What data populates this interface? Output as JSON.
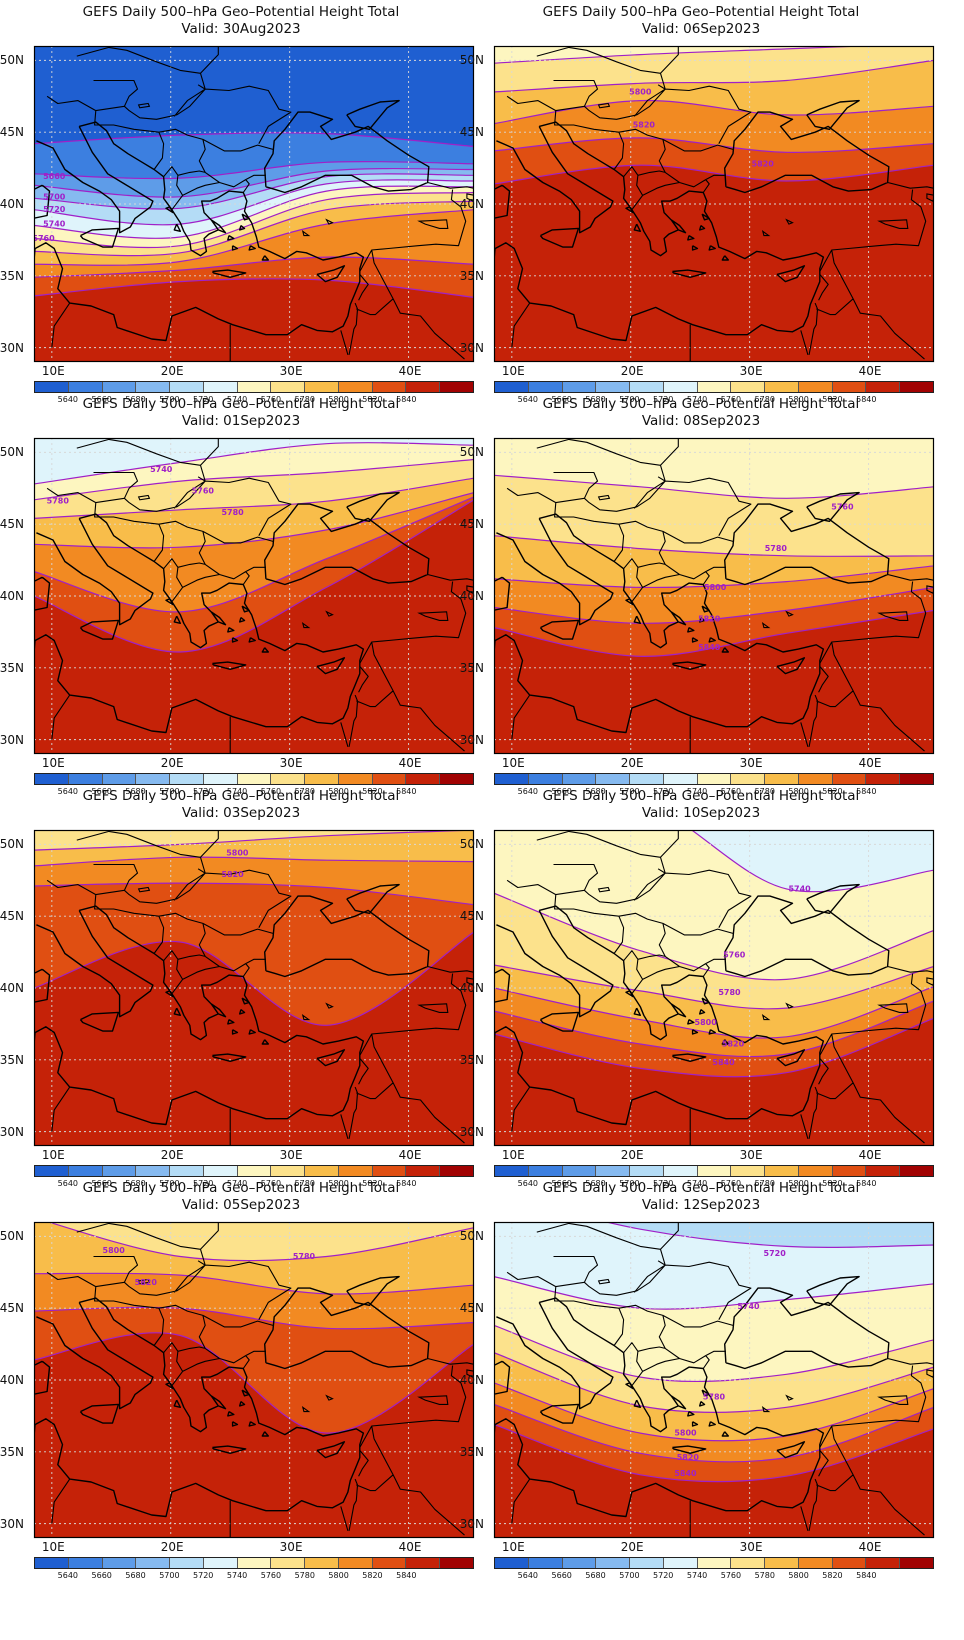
{
  "colors": {
    "fills": [
      "#1f5fd1",
      "#3c7fe0",
      "#5e9ce8",
      "#86baf0",
      "#b4dcf6",
      "#dff4fb",
      "#fdf6c0",
      "#fce28c",
      "#f8bd4a",
      "#f28a22",
      "#e04f12",
      "#c52208",
      "#a10202"
    ],
    "contour": "#a020c8",
    "coast": "#000000",
    "grid": "#d8d8d8"
  },
  "colorbar_labels": [
    "5640",
    "5660",
    "5680",
    "5700",
    "5720",
    "5740",
    "5760",
    "5780",
    "5800",
    "5820",
    "5840"
  ],
  "axes": {
    "x_labels": [
      "10E",
      "20E",
      "30E",
      "40E"
    ],
    "y_labels": [
      "50N",
      "45N",
      "40N",
      "35N",
      "30N"
    ]
  },
  "panels": [
    {
      "title": "GEFS Daily 500–hPa Geo–Potential Height Total",
      "valid": "Valid: 30Aug2023",
      "chart_data": {
        "type": "heatmap",
        "bands": [
          {
            "level": "5640",
            "y": [
              44.2,
              44.8,
              44.9,
              44.0
            ]
          },
          {
            "level": "5660",
            "y": [
              42.1,
              41.8,
              42.9,
              42.8
            ]
          },
          {
            "level": "5680",
            "y": [
              41.3,
              40.5,
              42.3,
              42.4
            ]
          },
          {
            "level": "5700",
            "y": [
              40.4,
              39.7,
              41.9,
              42.0
            ]
          },
          {
            "level": "5720",
            "y": [
              39.6,
              38.6,
              41.4,
              41.6
            ]
          },
          {
            "level": "5740",
            "y": [
              38.5,
              37.7,
              40.9,
              41.2
            ]
          },
          {
            "level": "5760",
            "y": [
              37.6,
              37.1,
              40.3,
              40.8
            ]
          },
          {
            "level": "5780",
            "y": [
              36.7,
              36.6,
              39.6,
              40.2
            ]
          },
          {
            "level": "5800",
            "y": [
              35.8,
              36.0,
              38.6,
              39.6
            ]
          },
          {
            "level": "5820",
            "y": [
              34.9,
              35.4,
              36.3,
              35.8
            ]
          },
          {
            "level": "5840",
            "y": [
              33.6,
              34.6,
              34.7,
              33.5
            ]
          }
        ],
        "contour_labels": [
          {
            "text": "5660",
            "lon": 10.2,
            "lat": 41.9
          },
          {
            "text": "5700",
            "lon": 10.2,
            "lat": 40.5
          },
          {
            "text": "5720",
            "lon": 10.2,
            "lat": 39.6
          },
          {
            "text": "5740",
            "lon": 10.2,
            "lat": 38.6
          },
          {
            "text": "5760",
            "lon": 9.3,
            "lat": 37.6
          }
        ]
      }
    },
    {
      "title": "GEFS Daily 500–hPa Geo–Potential Height Total",
      "valid": "Valid: 06Sep2023",
      "chart_data": {
        "type": "heatmap",
        "bands": [
          {
            "level": "5760",
            "y": [
              49.8,
              50.4,
              50.8,
              51.2
            ]
          },
          {
            "level": "5780",
            "y": [
              47.8,
              48.4,
              48.6,
              50.0
            ]
          },
          {
            "level": "5800",
            "y": [
              45.6,
              47.2,
              46.2,
              46.8
            ]
          },
          {
            "level": "5820",
            "y": [
              43.7,
              44.6,
              43.6,
              44.2
            ]
          },
          {
            "level": "5840",
            "y": [
              41.4,
              42.7,
              41.6,
              42.7
            ]
          }
        ],
        "contour_labels": [
          {
            "text": "5800",
            "lon": 20.8,
            "lat": 47.8
          },
          {
            "text": "5820",
            "lon": 21.1,
            "lat": 45.5
          },
          {
            "text": "5820",
            "lon": 31.1,
            "lat": 42.8
          }
        ]
      }
    },
    {
      "title": "GEFS Daily 500–hPa Geo–Potential Height Total",
      "valid": "Valid: 01Sep2023",
      "chart_data": {
        "type": "heatmap",
        "bands": [
          {
            "level": "5740",
            "y": [
              47.8,
              49.3,
              50.6,
              50.5
            ]
          },
          {
            "level": "5760",
            "y": [
              46.7,
              48.0,
              48.6,
              49.5
            ]
          },
          {
            "level": "5780",
            "y": [
              45.4,
              46.0,
              46.6,
              48.2
            ]
          },
          {
            "level": "5800",
            "y": [
              43.6,
              43.4,
              44.6,
              47.2
            ]
          },
          {
            "level": "5820",
            "y": [
              41.7,
              38.9,
              42.6,
              46.9
            ]
          },
          {
            "level": "5840",
            "y": [
              40.0,
              36.1,
              40.6,
              46.7
            ]
          }
        ],
        "contour_labels": [
          {
            "text": "5740",
            "lon": 19.2,
            "lat": 48.8
          },
          {
            "text": "5760",
            "lon": 22.7,
            "lat": 47.3
          },
          {
            "text": "5780",
            "lon": 10.5,
            "lat": 46.6
          },
          {
            "text": "5780",
            "lon": 25.2,
            "lat": 45.8
          }
        ]
      }
    },
    {
      "title": "GEFS Daily 500–hPa Geo–Potential Height Total",
      "valid": "Valid: 08Sep2023",
      "chart_data": {
        "type": "heatmap",
        "bands": [
          {
            "level": "5760",
            "y": [
              48.4,
              47.6,
              46.8,
              47.6
            ]
          },
          {
            "level": "5780",
            "y": [
              44.2,
              43.3,
              42.8,
              42.8
            ]
          },
          {
            "level": "5800",
            "y": [
              41.2,
              40.6,
              41.0,
              42.1
            ]
          },
          {
            "level": "5820",
            "y": [
              39.2,
              38.1,
              39.0,
              40.6
            ]
          },
          {
            "level": "5840",
            "y": [
              37.8,
              35.8,
              37.4,
              39.0
            ]
          }
        ],
        "contour_labels": [
          {
            "text": "5760",
            "lon": 37.8,
            "lat": 46.2
          },
          {
            "text": "5780",
            "lon": 32.2,
            "lat": 43.3
          },
          {
            "text": "5800",
            "lon": 27.1,
            "lat": 40.6
          },
          {
            "text": "5820",
            "lon": 26.6,
            "lat": 38.4
          },
          {
            "text": "5840",
            "lon": 26.6,
            "lat": 36.4
          }
        ]
      }
    },
    {
      "title": "GEFS Daily 500–hPa Geo–Potential Height Total",
      "valid": "Valid: 03Sep2023",
      "chart_data": {
        "type": "heatmap",
        "bands": [
          {
            "level": "5780",
            "y": [
              49.6,
              50.0,
              50.6,
              51.0
            ]
          },
          {
            "level": "5800",
            "y": [
              48.5,
              49.1,
              48.9,
              48.8
            ]
          },
          {
            "level": "5820",
            "y": [
              47.1,
              47.3,
              47.0,
              45.8
            ]
          },
          {
            "level": "5840",
            "y": [
              40.0,
              43.2,
              37.4,
              43.9
            ]
          }
        ],
        "contour_labels": [
          {
            "text": "5800",
            "lon": 25.6,
            "lat": 49.4
          },
          {
            "text": "5820",
            "lon": 25.2,
            "lat": 47.9
          }
        ]
      }
    },
    {
      "title": "GEFS Daily 500–hPa Geo–Potential Height Total",
      "valid": "Valid: 10Sep2023",
      "chart_data": {
        "type": "heatmap",
        "bands": [
          {
            "level": "5740",
            "y": [
              null,
              53.0,
              46.9,
              48.2
            ]
          },
          {
            "level": "5760",
            "y": [
              46.6,
              42.6,
              40.6,
              44.0
            ]
          },
          {
            "level": "5780",
            "y": [
              41.6,
              39.8,
              38.6,
              41.5
            ]
          },
          {
            "level": "5800",
            "y": [
              40.0,
              37.8,
              36.6,
              40.1
            ]
          },
          {
            "level": "5820",
            "y": [
              38.4,
              36.1,
              35.4,
              39.1
            ]
          },
          {
            "level": "5840",
            "y": [
              36.8,
              34.4,
              34.1,
              37.9
            ]
          }
        ],
        "contour_labels": [
          {
            "text": "5740",
            "lon": 34.2,
            "lat": 46.9
          },
          {
            "text": "5760",
            "lon": 28.7,
            "lat": 42.3
          },
          {
            "text": "5780",
            "lon": 28.3,
            "lat": 39.7
          },
          {
            "text": "5800",
            "lon": 26.3,
            "lat": 37.6
          },
          {
            "text": "5820",
            "lon": 28.6,
            "lat": 36.1
          },
          {
            "text": "5840",
            "lon": 27.8,
            "lat": 34.8
          }
        ]
      }
    },
    {
      "title": "GEFS Daily 500–hPa Geo–Potential Height Total",
      "valid": "Valid: 05Sep2023",
      "chart_data": {
        "type": "heatmap",
        "bands": [
          {
            "level": "5780",
            "y": [
              51.3,
              48.6,
              48.6,
              50.6
            ]
          },
          {
            "level": "5800",
            "y": [
              47.4,
              47.3,
              46.0,
              46.6
            ]
          },
          {
            "level": "5820",
            "y": [
              44.8,
              45.0,
              43.6,
              44.0
            ]
          },
          {
            "level": "5840",
            "y": [
              41.4,
              43.1,
              36.3,
              42.5
            ]
          }
        ],
        "contour_labels": [
          {
            "text": "5780",
            "lon": 31.2,
            "lat": 48.6
          },
          {
            "text": "5800",
            "lon": 15.2,
            "lat": 49.0
          },
          {
            "text": "5820",
            "lon": 17.9,
            "lat": 46.8
          }
        ]
      }
    },
    {
      "title": "GEFS Daily 500–hPa Geo–Potential Height Total",
      "valid": "Valid: 12Sep2023",
      "chart_data": {
        "type": "heatmap",
        "bands": [
          {
            "level": "5720",
            "y": [
              53.0,
              50.5,
              49.3,
              49.4
            ]
          },
          {
            "level": "5740",
            "y": [
              47.2,
              45.0,
              45.6,
              46.7
            ]
          },
          {
            "level": "5760",
            "y": [
              43.8,
              40.2,
              40.4,
              42.8
            ]
          },
          {
            "level": "5780",
            "y": [
              41.9,
              38.2,
              38.1,
              40.9
            ]
          },
          {
            "level": "5800",
            "y": [
              39.8,
              36.3,
              36.1,
              39.4
            ]
          },
          {
            "level": "5820",
            "y": [
              38.3,
              34.9,
              34.6,
              38.1
            ]
          },
          {
            "level": "5840",
            "y": [
              36.9,
              33.4,
              33.3,
              36.6
            ]
          }
        ],
        "contour_labels": [
          {
            "text": "5720",
            "lon": 32.1,
            "lat": 48.8
          },
          {
            "text": "5740",
            "lon": 29.9,
            "lat": 45.1
          },
          {
            "text": "5780",
            "lon": 27.0,
            "lat": 38.8
          },
          {
            "text": "5800",
            "lon": 24.6,
            "lat": 36.3
          },
          {
            "text": "5820",
            "lon": 24.8,
            "lat": 34.6
          },
          {
            "text": "5840",
            "lon": 24.6,
            "lat": 33.5
          }
        ]
      }
    }
  ]
}
